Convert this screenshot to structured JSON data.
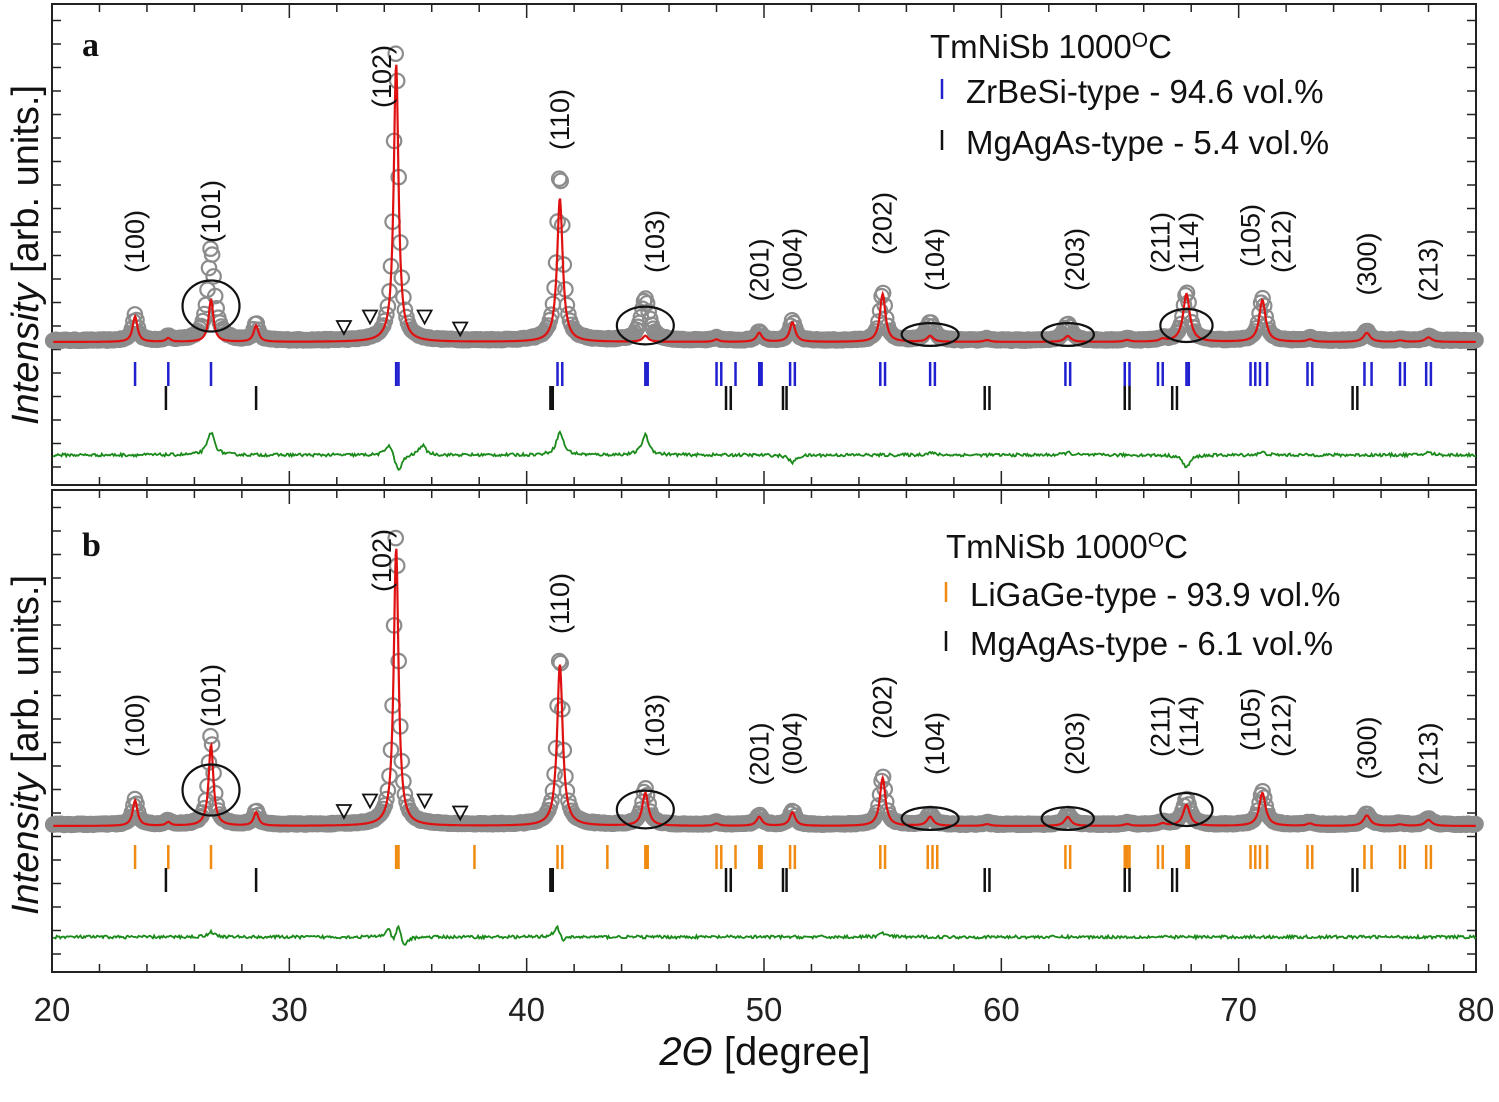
{
  "chart_data": {
    "type": "line",
    "x_axis": {
      "label_symbol": "2Θ",
      "label_unit": " [degree]",
      "range": [
        20,
        80
      ],
      "ticks": [
        20,
        30,
        40,
        50,
        60,
        70,
        80
      ],
      "minor_step": 2
    },
    "y_axis": {
      "label_italic": "Intensity",
      "label_unit": " [arb. units.]"
    },
    "panels": [
      {
        "letter": "a",
        "title": "TmNiSb 1000",
        "title_sup": "O",
        "title_end": "C",
        "legend": [
          {
            "text": "ZrBeSi-type - 94.6 vol.%",
            "color": "#2020d0"
          },
          {
            "text": "MgAgAs-type - 5.4 vol.%",
            "color": "#111111"
          }
        ],
        "peaks": [
          {
            "x": 23.5,
            "h": 0.085,
            "w": 0.12
          },
          {
            "x": 24.9,
            "h": 0.012,
            "w": 0.12
          },
          {
            "x": 26.7,
            "h": 0.14,
            "w": 0.12
          },
          {
            "x": 28.6,
            "h": 0.055,
            "w": 0.12
          },
          {
            "x": 34.5,
            "h": 0.93,
            "w": 0.12
          },
          {
            "x": 41.4,
            "h": 0.48,
            "w": 0.14
          },
          {
            "x": 45.0,
            "h": 0.02,
            "w": 0.14
          },
          {
            "x": 48.0,
            "h": 0.008,
            "w": 0.14
          },
          {
            "x": 49.8,
            "h": 0.03,
            "w": 0.14
          },
          {
            "x": 51.2,
            "h": 0.065,
            "w": 0.14
          },
          {
            "x": 55.0,
            "h": 0.16,
            "w": 0.14
          },
          {
            "x": 57.0,
            "h": 0.02,
            "w": 0.16
          },
          {
            "x": 59.4,
            "h": 0.006,
            "w": 0.16
          },
          {
            "x": 62.8,
            "h": 0.02,
            "w": 0.16
          },
          {
            "x": 65.3,
            "h": 0.006,
            "w": 0.16
          },
          {
            "x": 66.8,
            "h": 0.008,
            "w": 0.16
          },
          {
            "x": 67.8,
            "h": 0.16,
            "w": 0.17
          },
          {
            "x": 71.0,
            "h": 0.14,
            "w": 0.16
          },
          {
            "x": 73.0,
            "h": 0.008,
            "w": 0.16
          },
          {
            "x": 75.4,
            "h": 0.03,
            "w": 0.17
          },
          {
            "x": 76.8,
            "h": 0.005,
            "w": 0.17
          },
          {
            "x": 78.0,
            "h": 0.015,
            "w": 0.17
          }
        ],
        "obs_extra": [
          {
            "x": 26.7,
            "h": 0.17
          },
          {
            "x": 45.0,
            "h": 0.12
          },
          {
            "x": 57.0,
            "h": 0.04
          },
          {
            "x": 62.8,
            "h": 0.035
          },
          {
            "x": 34.5,
            "h": 0.05
          },
          {
            "x": 41.4,
            "h": 0.08
          }
        ],
        "difference": [
          {
            "x": 26.7,
            "d": 0.09
          },
          {
            "x": 34.2,
            "d": 0.05
          },
          {
            "x": 34.6,
            "d": -0.07
          },
          {
            "x": 35.6,
            "d": 0.04
          },
          {
            "x": 41.4,
            "d": 0.09
          },
          {
            "x": 45.0,
            "d": 0.08
          },
          {
            "x": 51.2,
            "d": -0.03
          },
          {
            "x": 57.0,
            "d": 0.01
          },
          {
            "x": 62.8,
            "d": 0.01
          },
          {
            "x": 67.8,
            "d": -0.05
          },
          {
            "x": 71.0,
            "d": 0.01
          },
          {
            "x": 78.0,
            "d": 0.01
          }
        ],
        "hkl_labels": [
          {
            "text": "(100)",
            "x": 23.5,
            "h": 0.23
          },
          {
            "text": "(101)",
            "x": 26.7,
            "h": 0.33
          },
          {
            "text": "(102)",
            "x": 33.9,
            "h": 0.78
          },
          {
            "text": "(110)",
            "x": 41.4,
            "h": 0.64
          },
          {
            "text": "(103)",
            "x": 45.4,
            "h": 0.23
          },
          {
            "text": "(201)",
            "x": 49.8,
            "h": 0.135
          },
          {
            "text": "(004)",
            "x": 51.2,
            "h": 0.17
          },
          {
            "text": "(202)",
            "x": 55.0,
            "h": 0.29
          },
          {
            "text": "(104)",
            "x": 57.2,
            "h": 0.17
          },
          {
            "text": "(203)",
            "x": 63.1,
            "h": 0.17
          },
          {
            "text": "(211)",
            "x": 66.7,
            "h": 0.23
          },
          {
            "text": "(114)",
            "x": 67.9,
            "h": 0.23
          },
          {
            "text": "(105)",
            "x": 70.5,
            "h": 0.25
          },
          {
            "text": "(212)",
            "x": 71.8,
            "h": 0.23
          },
          {
            "text": "(300)",
            "x": 75.4,
            "h": 0.155
          },
          {
            "text": "(213)",
            "x": 78.0,
            "h": 0.135
          }
        ],
        "ellipses": [
          {
            "x": 26.7,
            "h": 0.12,
            "rx": 1.2,
            "rh": 0.085
          },
          {
            "x": 45.0,
            "h": 0.055,
            "rx": 1.2,
            "rh": 0.063
          },
          {
            "x": 57.0,
            "h": 0.025,
            "rx": 1.2,
            "rh": 0.038
          },
          {
            "x": 62.8,
            "h": 0.025,
            "rx": 1.1,
            "rh": 0.038
          },
          {
            "x": 67.8,
            "h": 0.055,
            "rx": 1.1,
            "rh": 0.055
          }
        ],
        "triangles": [
          {
            "x": 32.3,
            "h": 0.05
          },
          {
            "x": 33.4,
            "h": 0.085
          },
          {
            "x": 35.7,
            "h": 0.085
          },
          {
            "x": 37.2,
            "h": 0.045
          }
        ],
        "ticks_phase1": [
          23.5,
          24.9,
          26.7,
          34.5,
          34.6,
          41.3,
          41.5,
          45.0,
          45.1,
          48.0,
          48.2,
          48.8,
          49.8,
          49.9,
          51.1,
          51.3,
          54.9,
          55.1,
          57.0,
          57.2,
          62.7,
          62.9,
          65.2,
          65.4,
          66.6,
          66.8,
          67.8,
          67.9,
          70.5,
          70.7,
          70.9,
          71.2,
          72.9,
          73.1,
          75.3,
          75.6,
          76.8,
          77.0,
          77.9,
          78.1
        ],
        "ticks_phase2": [
          24.8,
          28.6,
          41.0,
          41.1,
          48.4,
          48.6,
          50.8,
          50.95,
          59.3,
          59.5,
          65.2,
          65.4,
          67.2,
          67.4,
          74.8,
          75.0
        ]
      },
      {
        "letter": "b",
        "title": "TmNiSb 1000",
        "title_sup": "O",
        "title_end": "C",
        "legend": [
          {
            "text": "LiGaGe-type - 93.9 vol.%",
            "color": "#f08a10"
          },
          {
            "text": "MgAgAs-type - 6.1 vol.%",
            "color": "#111111"
          }
        ],
        "peaks": [
          {
            "x": 23.5,
            "h": 0.085,
            "w": 0.12
          },
          {
            "x": 24.9,
            "h": 0.012,
            "w": 0.12
          },
          {
            "x": 26.7,
            "h": 0.27,
            "w": 0.12
          },
          {
            "x": 28.6,
            "h": 0.045,
            "w": 0.12
          },
          {
            "x": 34.5,
            "h": 0.93,
            "w": 0.12
          },
          {
            "x": 41.4,
            "h": 0.54,
            "w": 0.14
          },
          {
            "x": 45.0,
            "h": 0.11,
            "w": 0.15
          },
          {
            "x": 48.0,
            "h": 0.008,
            "w": 0.14
          },
          {
            "x": 49.8,
            "h": 0.03,
            "w": 0.14
          },
          {
            "x": 51.2,
            "h": 0.045,
            "w": 0.14
          },
          {
            "x": 55.0,
            "h": 0.16,
            "w": 0.14
          },
          {
            "x": 57.0,
            "h": 0.03,
            "w": 0.16
          },
          {
            "x": 59.4,
            "h": 0.006,
            "w": 0.16
          },
          {
            "x": 62.8,
            "h": 0.03,
            "w": 0.16
          },
          {
            "x": 65.3,
            "h": 0.006,
            "w": 0.16
          },
          {
            "x": 66.8,
            "h": 0.008,
            "w": 0.16
          },
          {
            "x": 67.8,
            "h": 0.07,
            "w": 0.17
          },
          {
            "x": 71.0,
            "h": 0.11,
            "w": 0.16
          },
          {
            "x": 73.0,
            "h": 0.008,
            "w": 0.16
          },
          {
            "x": 75.4,
            "h": 0.035,
            "w": 0.17
          },
          {
            "x": 76.8,
            "h": 0.005,
            "w": 0.17
          },
          {
            "x": 78.0,
            "h": 0.02,
            "w": 0.17
          }
        ],
        "obs_extra": [
          {
            "x": 26.7,
            "h": 0.03
          },
          {
            "x": 45.0,
            "h": 0.01
          },
          {
            "x": 57.0,
            "h": 0.005
          },
          {
            "x": 62.8,
            "h": 0.005
          },
          {
            "x": 34.5,
            "h": 0.05
          },
          {
            "x": 41.4,
            "h": 0.03
          },
          {
            "x": 67.8,
            "h": 0.015
          }
        ],
        "difference": [
          {
            "x": 26.7,
            "d": 0.02
          },
          {
            "x": 34.2,
            "d": 0.04
          },
          {
            "x": 34.4,
            "d": -0.05
          },
          {
            "x": 34.6,
            "d": 0.08
          },
          {
            "x": 34.8,
            "d": -0.06
          },
          {
            "x": 41.3,
            "d": 0.05
          },
          {
            "x": 41.5,
            "d": -0.03
          },
          {
            "x": 55.0,
            "d": 0.015
          }
        ],
        "hkl_labels": [
          {
            "text": "(100)",
            "x": 23.5,
            "h": 0.23
          },
          {
            "text": "(101)",
            "x": 26.7,
            "h": 0.33
          },
          {
            "text": "(102)",
            "x": 33.9,
            "h": 0.78
          },
          {
            "text": "(110)",
            "x": 41.4,
            "h": 0.64
          },
          {
            "text": "(103)",
            "x": 45.4,
            "h": 0.23
          },
          {
            "text": "(201)",
            "x": 49.8,
            "h": 0.135
          },
          {
            "text": "(004)",
            "x": 51.2,
            "h": 0.17
          },
          {
            "text": "(202)",
            "x": 55.0,
            "h": 0.29
          },
          {
            "text": "(104)",
            "x": 57.2,
            "h": 0.17
          },
          {
            "text": "(203)",
            "x": 63.1,
            "h": 0.17
          },
          {
            "text": "(211)",
            "x": 66.7,
            "h": 0.23
          },
          {
            "text": "(114)",
            "x": 67.9,
            "h": 0.23
          },
          {
            "text": "(105)",
            "x": 70.5,
            "h": 0.25
          },
          {
            "text": "(212)",
            "x": 71.8,
            "h": 0.23
          },
          {
            "text": "(300)",
            "x": 75.4,
            "h": 0.155
          },
          {
            "text": "(213)",
            "x": 78.0,
            "h": 0.135
          }
        ],
        "ellipses": [
          {
            "x": 26.7,
            "h": 0.12,
            "rx": 1.2,
            "rh": 0.085
          },
          {
            "x": 45.0,
            "h": 0.055,
            "rx": 1.2,
            "rh": 0.063
          },
          {
            "x": 57.0,
            "h": 0.025,
            "rx": 1.2,
            "rh": 0.038
          },
          {
            "x": 62.8,
            "h": 0.025,
            "rx": 1.1,
            "rh": 0.038
          },
          {
            "x": 67.8,
            "h": 0.055,
            "rx": 1.1,
            "rh": 0.055
          }
        ],
        "triangles": [
          {
            "x": 32.3,
            "h": 0.05
          },
          {
            "x": 33.4,
            "h": 0.085
          },
          {
            "x": 35.7,
            "h": 0.085
          },
          {
            "x": 37.2,
            "h": 0.045
          }
        ],
        "ticks_phase1": [
          23.5,
          24.9,
          26.7,
          34.5,
          34.6,
          37.8,
          41.3,
          41.5,
          43.4,
          45.0,
          45.1,
          48.0,
          48.2,
          48.8,
          49.8,
          49.9,
          51.1,
          51.3,
          54.9,
          55.1,
          56.9,
          57.1,
          57.3,
          62.7,
          62.9,
          65.2,
          65.3,
          65.4,
          66.6,
          66.8,
          67.8,
          67.9,
          70.5,
          70.7,
          70.9,
          71.2,
          72.9,
          73.1,
          75.3,
          75.6,
          76.8,
          77.0,
          77.9,
          78.1
        ],
        "ticks_phase2": [
          24.8,
          28.6,
          41.0,
          41.1,
          48.4,
          48.6,
          50.8,
          50.95,
          59.3,
          59.5,
          65.2,
          65.4,
          67.2,
          67.4,
          74.8,
          75.0
        ]
      }
    ]
  }
}
